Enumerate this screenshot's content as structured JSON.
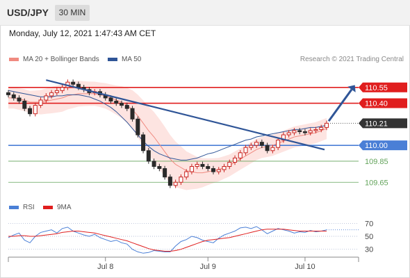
{
  "header": {
    "symbol": "USD/JPY",
    "timeframe": "30 MIN"
  },
  "datetime": "Monday, July 12, 2021 1:47:43 AM CET",
  "legend": {
    "ma20": {
      "label": "MA 20 + Bollinger Bands",
      "color": "#f08a80"
    },
    "ma50": {
      "label": "MA 50",
      "color": "#2f5597"
    },
    "credit": "Research © 2021 Trading Central"
  },
  "rsi_legend": {
    "rsi": {
      "label": "RSI",
      "color": "#4a7fd6"
    },
    "ma9": {
      "label": "9MA",
      "color": "#e01e1e"
    }
  },
  "colors": {
    "bull": "#c8221e",
    "bear": "#2a2a2a",
    "resistance": "#e01e1e",
    "pivot": "#4a7fd6",
    "support": "#62a35a",
    "trend": "#2f5597",
    "band": "#fde4e1"
  },
  "chart_data": [
    {
      "type": "candlestick",
      "x_labels": [
        "Jul 8",
        "Jul 9",
        "Jul 10"
      ],
      "ylim": [
        109.5,
        110.72
      ],
      "last_price": 110.21,
      "levels": [
        {
          "value": 110.55,
          "label": "110.55",
          "kind": "resistance"
        },
        {
          "value": 110.4,
          "label": "110.40",
          "kind": "resistance"
        },
        {
          "value": 110.0,
          "label": "110.00",
          "kind": "pivot"
        },
        {
          "value": 109.85,
          "label": "109.85",
          "kind": "support"
        },
        {
          "value": 109.65,
          "label": "109.65",
          "kind": "support"
        }
      ],
      "closes": [
        110.48,
        110.45,
        110.42,
        110.35,
        110.3,
        110.38,
        110.43,
        110.47,
        110.5,
        110.52,
        110.55,
        110.6,
        110.58,
        110.55,
        110.53,
        110.5,
        110.51,
        110.48,
        110.45,
        110.42,
        110.4,
        110.38,
        110.35,
        110.25,
        110.1,
        109.95,
        109.85,
        109.8,
        109.78,
        109.7,
        109.62,
        109.65,
        109.7,
        109.75,
        109.8,
        109.82,
        109.8,
        109.78,
        109.75,
        109.77,
        109.8,
        109.84,
        109.88,
        109.93,
        109.98,
        110.0,
        110.03,
        110.0,
        109.95,
        109.98,
        110.05,
        110.1,
        110.12,
        110.14,
        110.13,
        110.12,
        110.14,
        110.15,
        110.17,
        110.21
      ],
      "ma20": [
        110.45,
        110.45,
        110.44,
        110.43,
        110.41,
        110.41,
        110.41,
        110.42,
        110.43,
        110.44,
        110.45,
        110.47,
        110.48,
        110.49,
        110.49,
        110.49,
        110.49,
        110.48,
        110.47,
        110.45,
        110.43,
        110.41,
        110.38,
        110.34,
        110.28,
        110.21,
        110.14,
        110.08,
        110.01,
        109.94,
        109.87,
        109.82,
        109.79,
        109.76,
        109.75,
        109.74,
        109.74,
        109.75,
        109.76,
        109.77,
        109.79,
        109.81,
        109.84,
        109.87,
        109.9,
        109.93,
        109.96,
        109.98,
        109.99,
        110.0,
        110.02,
        110.04,
        110.06,
        110.08,
        110.09,
        110.1,
        110.11,
        110.12,
        110.14,
        110.16
      ],
      "ma50": [
        110.52,
        110.51,
        110.5,
        110.49,
        110.48,
        110.47,
        110.46,
        110.46,
        110.46,
        110.47,
        110.47,
        110.48,
        110.48,
        110.48,
        110.47,
        110.46,
        110.44,
        110.42,
        110.39,
        110.36,
        110.32,
        110.27,
        110.22,
        110.16,
        110.1,
        110.04,
        109.99,
        109.95,
        109.92,
        109.9,
        109.88,
        109.87,
        109.86,
        109.86,
        109.87,
        109.88,
        109.9,
        109.92,
        109.93,
        109.95,
        109.97,
        109.99,
        110.01,
        110.03,
        110.05,
        110.06,
        110.08,
        110.09,
        110.1,
        110.11,
        110.12,
        110.13,
        110.14,
        110.15,
        110.15,
        110.16,
        110.17,
        110.17,
        110.18,
        110.19
      ]
    },
    {
      "type": "line",
      "name": "RSI",
      "ylim": [
        20,
        80
      ],
      "ticks": [
        70,
        50,
        30
      ],
      "rsi": [
        48,
        52,
        55,
        44,
        40,
        50,
        56,
        58,
        60,
        55,
        62,
        64,
        58,
        55,
        52,
        50,
        53,
        48,
        45,
        42,
        44,
        40,
        38,
        30,
        26,
        24,
        25,
        28,
        27,
        26,
        26,
        35,
        42,
        45,
        50,
        48,
        44,
        42,
        40,
        47,
        52,
        55,
        58,
        63,
        64,
        62,
        65,
        60,
        54,
        58,
        62,
        60,
        58,
        55,
        57,
        56,
        59,
        57,
        58,
        60
      ],
      "ma9": [
        50,
        50,
        51,
        51,
        50,
        50,
        51,
        52,
        53,
        54,
        56,
        57,
        58,
        58,
        57,
        56,
        55,
        53,
        51,
        49,
        47,
        45,
        43,
        40,
        37,
        34,
        31,
        29,
        28,
        27,
        27,
        28,
        30,
        33,
        36,
        39,
        42,
        44,
        45,
        46,
        47,
        48,
        50,
        52,
        54,
        56,
        58,
        60,
        61,
        61,
        61,
        61,
        60,
        59,
        58,
        58,
        58,
        58,
        58,
        58
      ]
    }
  ]
}
